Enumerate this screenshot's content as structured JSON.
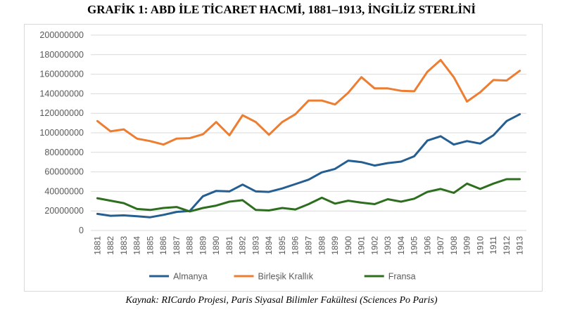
{
  "page": {
    "title": "GRAFİK 1: ABD İLE TİCARET HACMİ, 1881–1913, İNGİLİZ STERLİNİ",
    "caption": "Kaynak: RICardo Projesi, Paris Siyasal Bilimler Fakültesi (Sciences Po Paris)"
  },
  "chart_data": {
    "type": "line",
    "title": "GRAFİK 1: ABD İLE TİCARET HACMİ, 1881–1913, İNGİLİZ STERLİNİ",
    "xlabel": "",
    "ylabel": "",
    "ylim": [
      0,
      200000000
    ],
    "yticks": [
      "0",
      "20000000",
      "40000000",
      "60000000",
      "80000000",
      "100000000",
      "120000000",
      "140000000",
      "160000000",
      "180000000",
      "200000000"
    ],
    "grid": true,
    "legend": "bottom",
    "categories": [
      "1881",
      "1882",
      "1883",
      "1884",
      "1885",
      "1886",
      "1887",
      "1888",
      "1889",
      "1890",
      "1891",
      "1892",
      "1893",
      "1894",
      "1895",
      "1896",
      "1897",
      "1898",
      "1899",
      "1900",
      "1901",
      "1902",
      "1903",
      "1904",
      "1905",
      "1906",
      "1907",
      "1908",
      "1909",
      "1910",
      "1911",
      "1912",
      "1913"
    ],
    "series": [
      {
        "name": "Almanya",
        "color": "#255e91",
        "values": [
          17000000,
          15000000,
          15500000,
          14500000,
          13500000,
          16000000,
          19000000,
          20000000,
          35000000,
          40500000,
          40000000,
          47000000,
          40000000,
          39500000,
          43000000,
          47500000,
          52000000,
          59500000,
          63000000,
          71500000,
          70000000,
          66500000,
          69000000,
          70500000,
          76000000,
          92000000,
          96500000,
          88000000,
          91500000,
          89000000,
          97500000,
          112000000,
          119000000
        ]
      },
      {
        "name": "Birleşik Krallık",
        "color": "#ed7d31",
        "values": [
          112000000,
          101500000,
          103500000,
          94000000,
          91500000,
          88000000,
          94000000,
          94500000,
          98500000,
          111000000,
          97500000,
          118000000,
          111000000,
          98000000,
          111000000,
          119000000,
          133000000,
          133000000,
          129000000,
          141000000,
          157000000,
          145500000,
          145500000,
          143000000,
          142500000,
          162500000,
          174500000,
          157000000,
          132000000,
          141500000,
          154000000,
          153500000,
          163500000
        ]
      },
      {
        "name": "Fransa",
        "color": "#2d6e1f",
        "values": [
          33000000,
          30500000,
          28000000,
          22000000,
          21000000,
          23000000,
          24000000,
          19500000,
          23000000,
          25500000,
          29500000,
          31000000,
          21000000,
          20500000,
          23000000,
          21500000,
          27000000,
          33500000,
          27500000,
          30500000,
          28500000,
          27000000,
          32000000,
          29500000,
          32500000,
          39500000,
          42500000,
          38500000,
          48000000,
          42500000,
          48000000,
          52500000,
          52500000
        ]
      }
    ]
  }
}
